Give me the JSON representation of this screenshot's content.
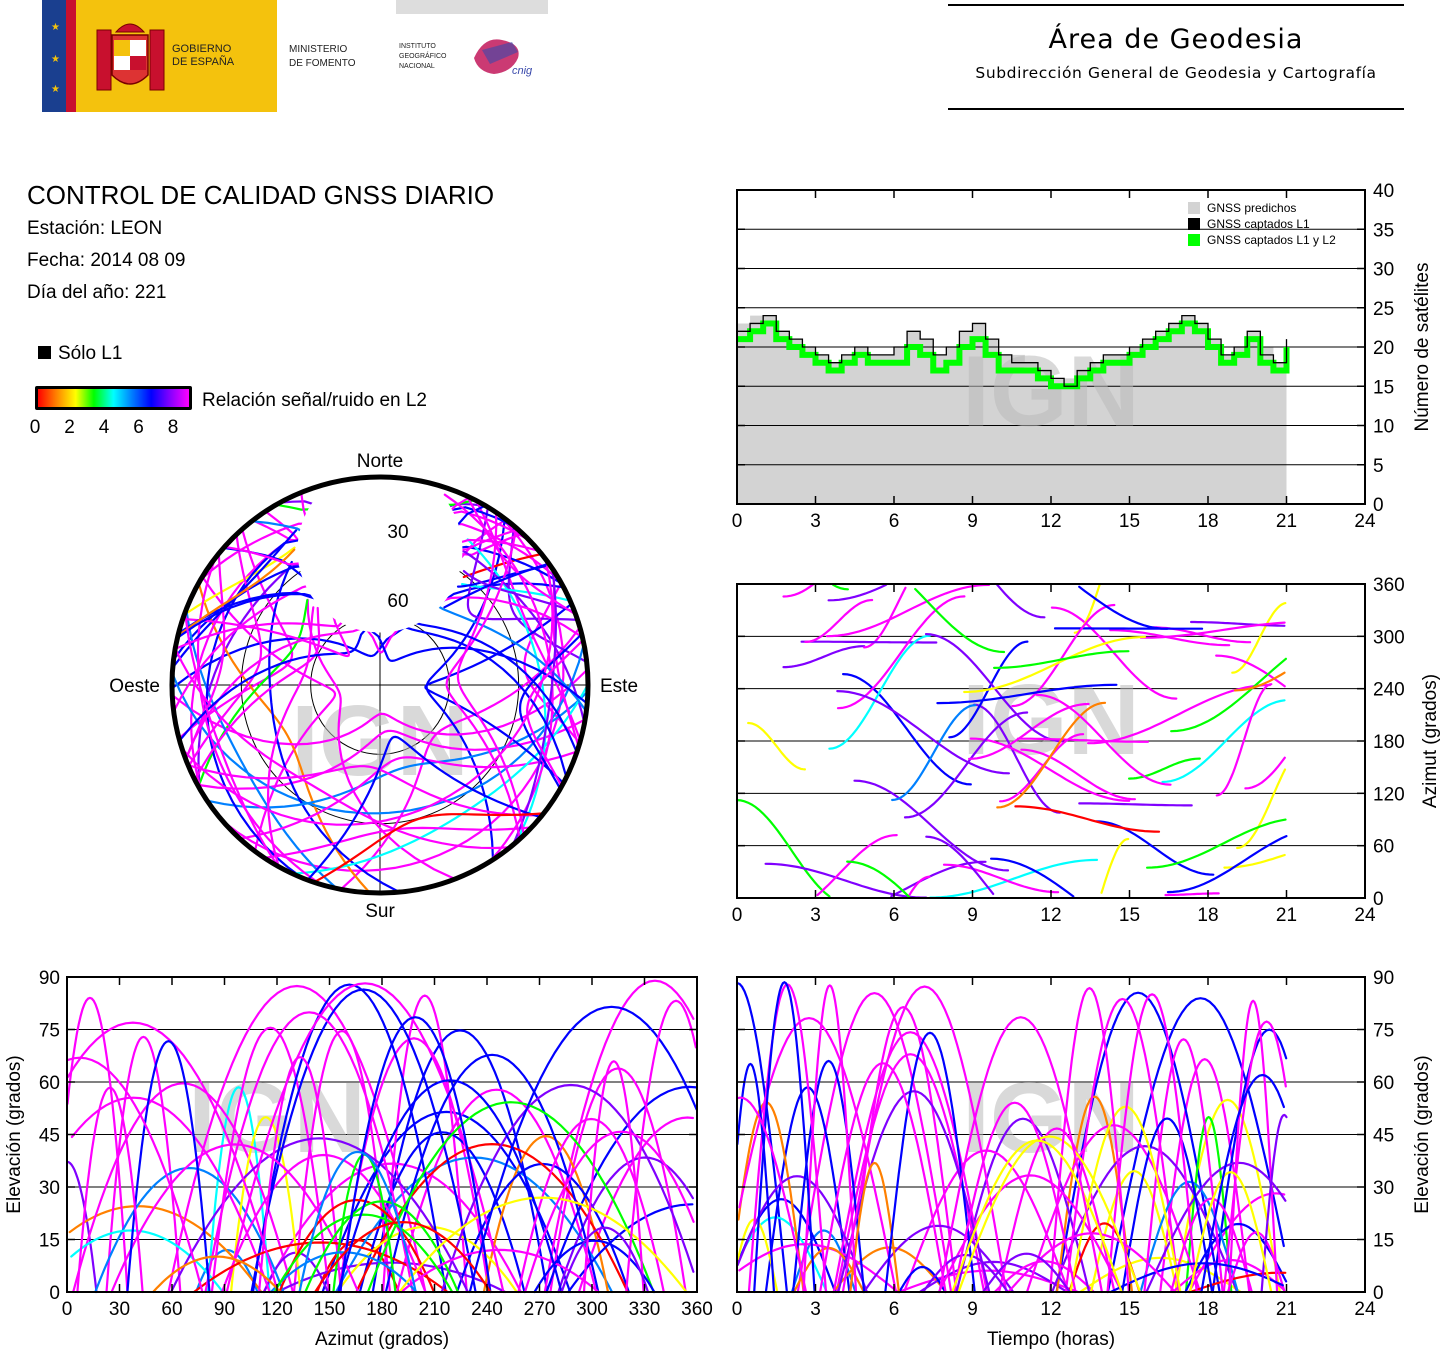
{
  "header": {
    "gov_text_1": "GOBIERNO",
    "gov_text_2": "DE ESPAÑA",
    "ministry_1": "MINISTERIO",
    "ministry_2": "DE FOMENTO",
    "inst_1": "INSTITUTO",
    "inst_2": "GEOGRÁFICO",
    "inst_3": "NACIONAL",
    "cnig": "cnig",
    "area_title": "Área de Geodesia",
    "area_subtitle": "Subdirección General de Geodesia y Cartografía"
  },
  "info": {
    "title": "CONTROL DE CALIDAD GNSS DIARIO",
    "station": "Estación: LEON",
    "date": "Fecha: 2014 08 09",
    "doy": "Día del año: 221"
  },
  "legend": {
    "only_l1": "Sólo L1",
    "snr_label": "Relación señal/ruido en L2",
    "snr_ticks": [
      "0",
      "2",
      "4",
      "6",
      "8"
    ],
    "snr_colors": [
      "#ff0000",
      "#ff8000",
      "#ffff00",
      "#00ff00",
      "#00ffff",
      "#0080ff",
      "#0000ff",
      "#8000ff",
      "#ff00ff"
    ]
  },
  "watermark": "IGN",
  "chart_data": [
    {
      "type": "polar",
      "id": "skyplot",
      "labels": {
        "north": "Norte",
        "south": "Sur",
        "east": "Este",
        "west": "Oeste"
      },
      "ring_labels": [
        "30",
        "60"
      ],
      "rings_elevation": [
        30,
        60
      ]
    },
    {
      "type": "area",
      "id": "satellite-count",
      "legend": [
        "GNSS predichos",
        "GNSS captados L1",
        "GNSS captados L1 y L2"
      ],
      "legend_colors": [
        "#d3d3d3",
        "#000000",
        "#00ff00"
      ],
      "ylabel": "Número de satélites",
      "xlim": [
        0,
        24
      ],
      "ylim": [
        0,
        40
      ],
      "xticks": [
        "0",
        "3",
        "6",
        "9",
        "12",
        "15",
        "18",
        "21",
        "24"
      ],
      "yticks": [
        "0",
        "5",
        "10",
        "15",
        "20",
        "25",
        "30",
        "35",
        "40"
      ],
      "x": [
        0,
        0.5,
        1,
        1.5,
        2,
        2.5,
        3,
        3.5,
        4,
        4.5,
        5,
        5.5,
        6,
        6.5,
        7,
        7.5,
        8,
        8.5,
        9,
        9.5,
        10,
        10.5,
        11,
        11.5,
        12,
        12.5,
        13,
        13.5,
        14,
        14.5,
        15,
        15.5,
        16,
        16.5,
        17,
        17.5,
        18,
        18.5,
        19,
        19.5,
        20,
        20.5,
        21
      ],
      "series": [
        {
          "name": "GNSS predichos",
          "values": [
            23,
            24,
            24,
            22,
            21,
            20,
            19,
            18,
            19,
            20,
            19,
            19,
            20,
            22,
            21,
            19,
            20,
            22,
            23,
            21,
            19,
            19,
            18,
            17,
            16,
            16,
            17,
            18,
            19,
            19,
            20,
            21,
            22,
            23,
            24,
            23,
            21,
            19,
            20,
            22,
            20,
            18,
            21
          ]
        },
        {
          "name": "GNSS captados L1",
          "values": [
            22,
            23,
            24,
            22,
            21,
            20,
            19,
            18,
            19,
            20,
            19,
            19,
            20,
            22,
            21,
            19,
            20,
            22,
            23,
            21,
            19,
            18,
            18,
            17,
            16,
            15,
            17,
            18,
            19,
            19,
            20,
            21,
            22,
            23,
            24,
            23,
            21,
            19,
            20,
            22,
            19,
            18,
            21
          ]
        },
        {
          "name": "GNSS captados L1 y L2",
          "values": [
            21,
            22,
            23,
            21,
            20,
            19,
            18,
            17,
            18,
            19,
            18,
            18,
            18,
            20,
            19,
            17,
            18,
            20,
            21,
            19,
            17,
            17,
            17,
            16,
            15,
            15,
            16,
            17,
            18,
            18,
            19,
            20,
            21,
            22,
            23,
            22,
            20,
            18,
            19,
            21,
            18,
            17,
            20
          ]
        }
      ]
    },
    {
      "type": "scatter",
      "id": "azimuth-time",
      "ylabel": "Azimut (grados)",
      "xlim": [
        0,
        24
      ],
      "ylim": [
        0,
        360
      ],
      "xticks": [
        "0",
        "3",
        "6",
        "9",
        "12",
        "15",
        "18",
        "21",
        "24"
      ],
      "yticks": [
        "0",
        "60",
        "120",
        "180",
        "240",
        "300",
        "360"
      ]
    },
    {
      "type": "scatter",
      "id": "elevation-azimuth",
      "xlabel": "Azimut (grados)",
      "ylabel": "Elevación (grados)",
      "xlim": [
        0,
        360
      ],
      "ylim": [
        0,
        90
      ],
      "xticks": [
        "0",
        "30",
        "60",
        "90",
        "120",
        "150",
        "180",
        "210",
        "240",
        "270",
        "300",
        "330",
        "360"
      ],
      "yticks": [
        "0",
        "15",
        "30",
        "45",
        "60",
        "75",
        "90"
      ]
    },
    {
      "type": "scatter",
      "id": "elevation-time",
      "xlabel": "Tiempo (horas)",
      "ylabel": "Elevación (grados)",
      "xlim": [
        0,
        24
      ],
      "ylim": [
        0,
        90
      ],
      "xticks": [
        "0",
        "3",
        "6",
        "9",
        "12",
        "15",
        "18",
        "21",
        "24"
      ],
      "yticks": [
        "0",
        "15",
        "30",
        "45",
        "60",
        "75",
        "90"
      ]
    }
  ]
}
